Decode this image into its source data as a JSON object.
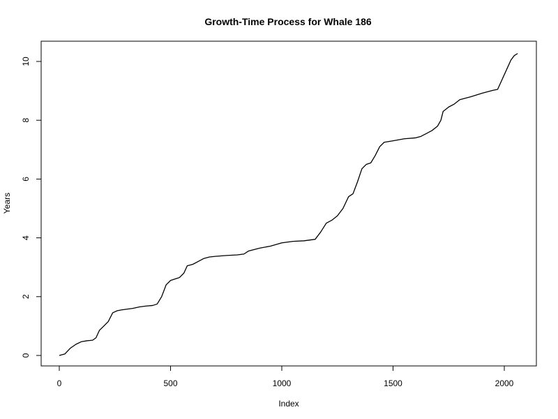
{
  "chart_data": {
    "type": "line",
    "title": "Growth-Time Process for Whale 186",
    "xlabel": "Index",
    "ylabel": "Years",
    "xlim": [
      0,
      2060
    ],
    "ylim": [
      0,
      10.3
    ],
    "x_ticks": [
      0,
      500,
      1000,
      1500,
      2000
    ],
    "y_ticks": [
      0,
      2,
      4,
      6,
      8,
      10
    ],
    "x_tick_labels": [
      "0",
      "500",
      "1000",
      "1500",
      "2000"
    ],
    "y_tick_labels": [
      "0",
      "2",
      "4",
      "6",
      "8",
      "10"
    ],
    "grid": false,
    "legend": "none",
    "series": [
      {
        "x": [
          0,
          25,
          50,
          75,
          100,
          125,
          150,
          165,
          180,
          200,
          220,
          240,
          260,
          280,
          300,
          330,
          360,
          390,
          420,
          440,
          460,
          480,
          500,
          520,
          540,
          560,
          575,
          600,
          625,
          650,
          675,
          700,
          750,
          800,
          830,
          850,
          900,
          950,
          1000,
          1050,
          1100,
          1150,
          1175,
          1200,
          1225,
          1250,
          1275,
          1300,
          1320,
          1340,
          1360,
          1380,
          1400,
          1420,
          1440,
          1460,
          1500,
          1550,
          1600,
          1625,
          1650,
          1675,
          1700,
          1715,
          1725,
          1750,
          1775,
          1800,
          1850,
          1900,
          1950,
          1970,
          1985,
          2000,
          2015,
          2030,
          2045,
          2060
        ],
        "y": [
          0,
          0.05,
          0.25,
          0.38,
          0.47,
          0.5,
          0.52,
          0.6,
          0.85,
          1.0,
          1.15,
          1.45,
          1.52,
          1.55,
          1.57,
          1.6,
          1.65,
          1.68,
          1.7,
          1.75,
          2.0,
          2.4,
          2.55,
          2.6,
          2.65,
          2.8,
          3.05,
          3.1,
          3.2,
          3.3,
          3.35,
          3.37,
          3.4,
          3.42,
          3.45,
          3.55,
          3.65,
          3.72,
          3.83,
          3.88,
          3.9,
          3.95,
          4.2,
          4.5,
          4.6,
          4.75,
          5.0,
          5.4,
          5.5,
          5.9,
          6.35,
          6.5,
          6.55,
          6.8,
          7.1,
          7.25,
          7.3,
          7.37,
          7.4,
          7.45,
          7.55,
          7.65,
          7.8,
          8.0,
          8.3,
          8.45,
          8.55,
          8.7,
          8.8,
          8.92,
          9.02,
          9.05,
          9.3,
          9.55,
          9.8,
          10.05,
          10.2,
          10.27
        ]
      }
    ]
  }
}
